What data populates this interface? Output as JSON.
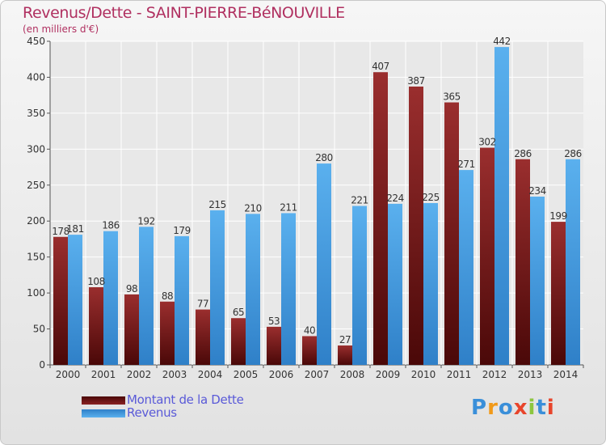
{
  "chart_data": {
    "type": "bar",
    "title": "Revenus/Dette - SAINT-PIERRE-BéNOUVILLE",
    "subtitle": "(en milliers d'€)",
    "categories": [
      "2000",
      "2001",
      "2002",
      "2003",
      "2004",
      "2005",
      "2006",
      "2007",
      "2008",
      "2009",
      "2010",
      "2011",
      "2012",
      "2013",
      "2014"
    ],
    "series": [
      {
        "name": "Montant de la Dette",
        "color": "#7a1c1c",
        "values": [
          178,
          108,
          98,
          88,
          77,
          65,
          53,
          40,
          27,
          407,
          387,
          365,
          302,
          286,
          199
        ]
      },
      {
        "name": "Revenus",
        "color": "#3a95dd",
        "values": [
          181,
          186,
          192,
          179,
          215,
          210,
          211,
          280,
          221,
          224,
          225,
          271,
          442,
          234,
          286
        ]
      }
    ],
    "ylim": [
      0,
      450
    ],
    "yticks": [
      0,
      50,
      100,
      150,
      200,
      250,
      300,
      350,
      400,
      450
    ],
    "grid": true,
    "legend_position": "bottom-left"
  },
  "logo": {
    "letters": [
      "P",
      "r",
      "o",
      "x",
      "i",
      "t",
      "i"
    ],
    "colors": [
      "#3a8fd9",
      "#f19a1a",
      "#3a8fd9",
      "#e8452c",
      "#8cc63f",
      "#3a8fd9",
      "#e8452c"
    ]
  }
}
